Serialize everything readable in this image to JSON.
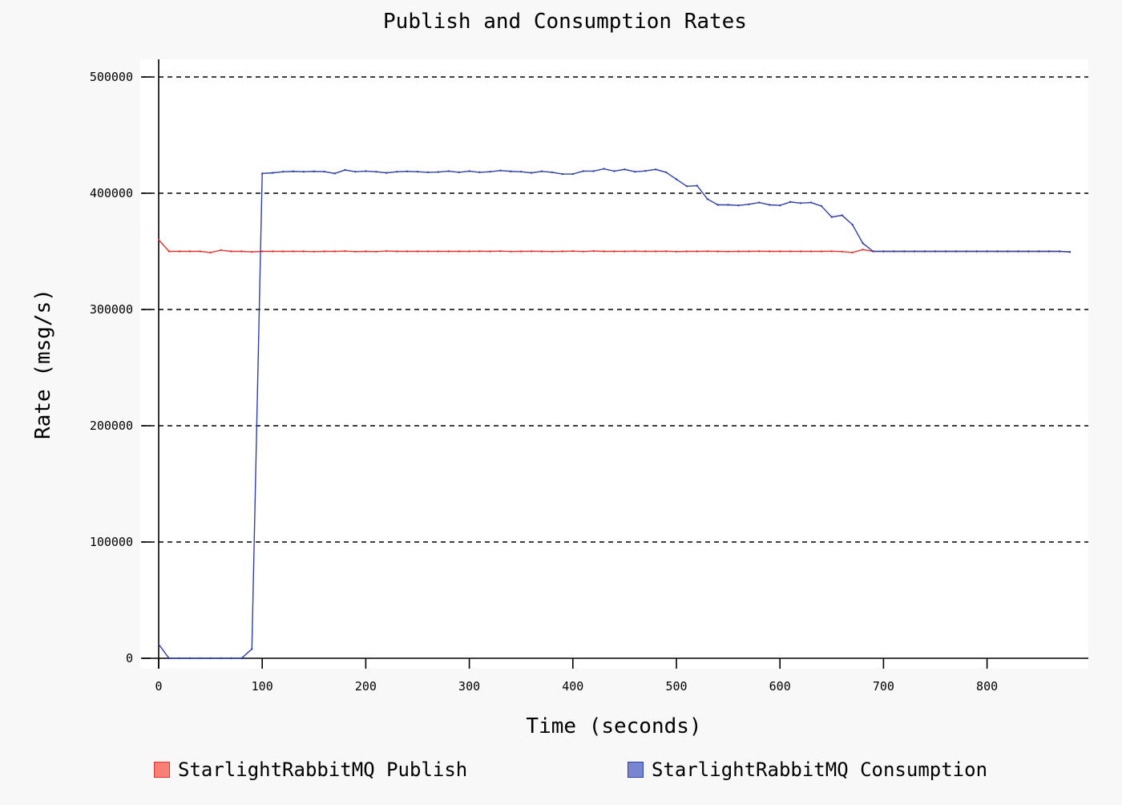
{
  "chart_data": {
    "type": "line",
    "title": "Publish and Consumption Rates",
    "xlabel": "Time (seconds)",
    "ylabel": "Rate (msg/s)",
    "xlim": [
      -5,
      895
    ],
    "ylim": [
      -10000,
      515000
    ],
    "xticks": [
      0,
      100,
      200,
      300,
      400,
      500,
      600,
      700,
      800
    ],
    "yticks": [
      0,
      100000,
      200000,
      300000,
      400000,
      500000
    ],
    "xtick_labels": [
      "0",
      "100",
      "200",
      "300",
      "400",
      "500",
      "600",
      "700",
      "800"
    ],
    "ytick_labels": [
      "0",
      "100000",
      "200000",
      "300000",
      "400000",
      "500000"
    ],
    "grid": "horizontal dashed",
    "legend_position": "bottom",
    "x": [
      0,
      10,
      20,
      30,
      40,
      50,
      60,
      70,
      80,
      90,
      100,
      110,
      120,
      130,
      140,
      150,
      160,
      170,
      180,
      190,
      200,
      210,
      220,
      230,
      240,
      250,
      260,
      270,
      280,
      290,
      300,
      310,
      320,
      330,
      340,
      350,
      360,
      370,
      380,
      390,
      400,
      410,
      420,
      430,
      440,
      450,
      460,
      470,
      480,
      490,
      500,
      510,
      520,
      530,
      540,
      550,
      560,
      570,
      580,
      590,
      600,
      610,
      620,
      630,
      640,
      650,
      660,
      670,
      680,
      690,
      700,
      710,
      720,
      730,
      740,
      750,
      760,
      770,
      780,
      790,
      800,
      810,
      820,
      830,
      840,
      850,
      860,
      870,
      880
    ],
    "series": [
      {
        "name": "StarlightRabbitMQ Publish",
        "color": "#e8312f",
        "legend_fill": "#f77f73",
        "legend_stroke": "#e8312f",
        "values": [
          360000,
          350000,
          350000,
          350000,
          350000,
          349000,
          351000,
          350000,
          350000,
          349500,
          350000,
          350000,
          350000,
          350000,
          350000,
          349800,
          350000,
          350000,
          350200,
          349800,
          350000,
          349800,
          350300,
          350000,
          350000,
          350000,
          350000,
          350000,
          350000,
          350000,
          350000,
          350100,
          350000,
          350200,
          349900,
          350000,
          350100,
          350000,
          349900,
          350000,
          350200,
          349900,
          350300,
          350000,
          350000,
          350000,
          350100,
          350000,
          350000,
          350100,
          349800,
          350000,
          350000,
          350100,
          350000,
          349900,
          350000,
          350000,
          350100,
          350000,
          350000,
          350000,
          350000,
          350000,
          350000,
          350100,
          349800,
          349000,
          351500,
          350000,
          350000,
          350000,
          350000,
          350000,
          350000,
          350000,
          350000,
          350000,
          350000,
          350000,
          350000,
          350000,
          350000,
          350000,
          350000,
          350000,
          350000,
          350000,
          349500
        ]
      },
      {
        "name": "StarlightRabbitMQ Consumption",
        "color": "#2d3fa8",
        "legend_fill": "#7a85d1",
        "legend_stroke": "#2d3fa8",
        "values": [
          12000,
          0,
          0,
          0,
          0,
          0,
          0,
          0,
          0,
          8000,
          417000,
          417500,
          418500,
          418800,
          418500,
          418800,
          418600,
          417000,
          420000,
          418500,
          419000,
          418500,
          417500,
          418500,
          418800,
          418500,
          418000,
          418200,
          419000,
          418000,
          419000,
          418000,
          418500,
          419500,
          418800,
          418500,
          417500,
          418800,
          418000,
          416500,
          416500,
          419000,
          419000,
          421000,
          419000,
          420500,
          418500,
          419200,
          420500,
          418000,
          412000,
          406000,
          406500,
          395000,
          390000,
          390000,
          389500,
          390500,
          392000,
          390000,
          389500,
          392500,
          391500,
          392000,
          389000,
          379500,
          381000,
          373000,
          357000,
          350000,
          350000,
          350000,
          350000,
          350000,
          350000,
          350000,
          350000,
          350000,
          350000,
          350000,
          350000,
          350000,
          350000,
          350000,
          350000,
          350000,
          350000,
          350000,
          349500
        ]
      }
    ]
  }
}
